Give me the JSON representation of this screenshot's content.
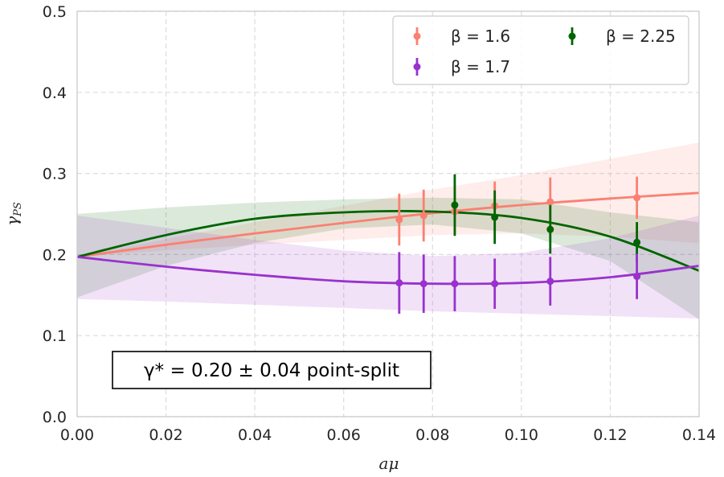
{
  "chart_data": {
    "type": "line",
    "xlabel": "aμ",
    "ylabel": "γ_PS",
    "xlim": [
      0.0,
      0.14
    ],
    "ylim": [
      0.0,
      0.5
    ],
    "xticks": [
      "0.00",
      "0.02",
      "0.04",
      "0.06",
      "0.08",
      "0.10",
      "0.12",
      "0.14"
    ],
    "yticks": [
      "0.0",
      "0.1",
      "0.2",
      "0.3",
      "0.4",
      "0.5"
    ],
    "grid": true,
    "legend_position": "top-right",
    "annotation": "γ* = 0.20 ± 0.04 point-split",
    "series": [
      {
        "name": "β = 1.6",
        "color": "#fa8072",
        "points": [
          {
            "x": 0.0725,
            "y": 0.243,
            "err": 0.032
          },
          {
            "x": 0.078,
            "y": 0.248,
            "err": 0.032
          },
          {
            "x": 0.085,
            "y": 0.253,
            "err": 0.028
          },
          {
            "x": 0.094,
            "y": 0.26,
            "err": 0.03
          },
          {
            "x": 0.1065,
            "y": 0.265,
            "err": 0.03
          },
          {
            "x": 0.126,
            "y": 0.27,
            "err": 0.026
          }
        ],
        "fit": {
          "x": [
            0.0,
            0.02,
            0.04,
            0.06,
            0.08,
            0.1,
            0.12,
            0.14
          ],
          "y": [
            0.197,
            0.212,
            0.226,
            0.239,
            0.251,
            0.261,
            0.269,
            0.276
          ],
          "lower": [
            0.197,
            0.205,
            0.212,
            0.218,
            0.224,
            0.226,
            0.222,
            0.214
          ],
          "upper": [
            0.197,
            0.219,
            0.24,
            0.26,
            0.28,
            0.298,
            0.318,
            0.338
          ]
        }
      },
      {
        "name": "β = 2.25",
        "color": "#006400",
        "points": [
          {
            "x": 0.085,
            "y": 0.261,
            "err": 0.038
          },
          {
            "x": 0.094,
            "y": 0.246,
            "err": 0.033
          },
          {
            "x": 0.1065,
            "y": 0.231,
            "err": 0.03
          },
          {
            "x": 0.126,
            "y": 0.215,
            "err": 0.025
          }
        ],
        "fit": {
          "x": [
            0.0,
            0.02,
            0.04,
            0.06,
            0.08,
            0.1,
            0.12,
            0.14
          ],
          "y": [
            0.197,
            0.224,
            0.244,
            0.252,
            0.253,
            0.245,
            0.222,
            0.18
          ],
          "lower": [
            0.147,
            0.186,
            0.214,
            0.232,
            0.237,
            0.226,
            0.192,
            0.12
          ],
          "upper": [
            0.25,
            0.258,
            0.264,
            0.268,
            0.27,
            0.268,
            0.252,
            0.24
          ]
        }
      },
      {
        "name": "β = 1.7",
        "color": "#9932cc",
        "points": [
          {
            "x": 0.0725,
            "y": 0.165,
            "err": 0.038
          },
          {
            "x": 0.078,
            "y": 0.164,
            "err": 0.036
          },
          {
            "x": 0.085,
            "y": 0.164,
            "err": 0.034
          },
          {
            "x": 0.094,
            "y": 0.164,
            "err": 0.031
          },
          {
            "x": 0.1065,
            "y": 0.167,
            "err": 0.03
          },
          {
            "x": 0.126,
            "y": 0.173,
            "err": 0.028
          }
        ],
        "fit": {
          "x": [
            0.0,
            0.02,
            0.04,
            0.06,
            0.08,
            0.1,
            0.12,
            0.14
          ],
          "y": [
            0.197,
            0.185,
            0.175,
            0.167,
            0.164,
            0.165,
            0.172,
            0.186
          ],
          "lower": [
            0.145,
            0.142,
            0.138,
            0.134,
            0.13,
            0.127,
            0.124,
            0.121
          ],
          "upper": [
            0.248,
            0.233,
            0.218,
            0.205,
            0.198,
            0.202,
            0.22,
            0.248
          ]
        }
      }
    ]
  }
}
